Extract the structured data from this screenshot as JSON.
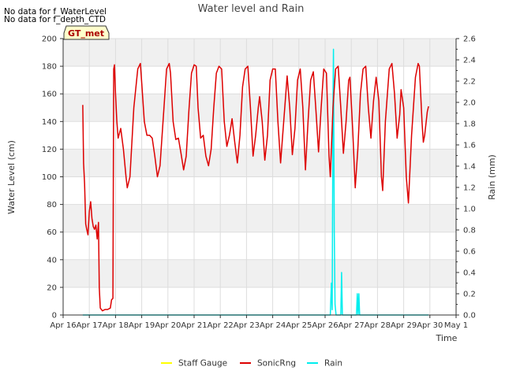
{
  "notes": [
    "No data for f_WaterLevel",
    "No data for f_depth_CTD"
  ],
  "badge": "GT_met",
  "chart_data": {
    "type": "line",
    "title": "Water level and Rain",
    "xlabel": "Time",
    "ylabel_left": "Water Level (cm)",
    "ylabel_right": "Rain (mm)",
    "x_ticks": [
      "Apr 16",
      "Apr 17",
      "Apr 18",
      "Apr 19",
      "Apr 20",
      "Apr 21",
      "Apr 22",
      "Apr 23",
      "Apr 24",
      "Apr 25",
      "Apr 26",
      "Apr 27",
      "Apr 28",
      "Apr 29",
      "Apr 30",
      "May 1"
    ],
    "xlim": [
      0,
      15
    ],
    "ylim_left": [
      0,
      200
    ],
    "yticks_left": [
      0,
      20,
      40,
      60,
      80,
      100,
      120,
      140,
      160,
      180,
      200
    ],
    "ylim_right": [
      0,
      2.6
    ],
    "yticks_right": [
      0.0,
      0.2,
      0.4,
      0.6,
      0.8,
      1.0,
      1.2,
      1.4,
      1.6,
      1.8,
      2.0,
      2.2,
      2.4,
      2.6
    ],
    "grid": true,
    "legend_position": "bottom",
    "series": [
      {
        "name": "Staff Gauge",
        "color": "#ffff00",
        "points": []
      },
      {
        "name": "SonicRng",
        "color": "#dd0000",
        "axis": "left",
        "points": [
          [
            0.75,
            152
          ],
          [
            0.78,
            110
          ],
          [
            0.82,
            95
          ],
          [
            0.86,
            66
          ],
          [
            0.9,
            62
          ],
          [
            0.95,
            58
          ],
          [
            1.0,
            75
          ],
          [
            1.05,
            82
          ],
          [
            1.1,
            70
          ],
          [
            1.15,
            64
          ],
          [
            1.2,
            62
          ],
          [
            1.25,
            65
          ],
          [
            1.3,
            55
          ],
          [
            1.35,
            67
          ],
          [
            1.38,
            20
          ],
          [
            1.42,
            5
          ],
          [
            1.5,
            3
          ],
          [
            1.6,
            4
          ],
          [
            1.7,
            4
          ],
          [
            1.8,
            5
          ],
          [
            1.85,
            11
          ],
          [
            1.9,
            12
          ],
          [
            1.93,
            178
          ],
          [
            1.96,
            181
          ],
          [
            2.0,
            160
          ],
          [
            2.05,
            140
          ],
          [
            2.1,
            128
          ],
          [
            2.2,
            135
          ],
          [
            2.3,
            120
          ],
          [
            2.4,
            100
          ],
          [
            2.45,
            92
          ],
          [
            2.55,
            100
          ],
          [
            2.7,
            150
          ],
          [
            2.85,
            178
          ],
          [
            2.95,
            182
          ],
          [
            3.0,
            168
          ],
          [
            3.1,
            140
          ],
          [
            3.2,
            130
          ],
          [
            3.3,
            130
          ],
          [
            3.4,
            128
          ],
          [
            3.5,
            115
          ],
          [
            3.6,
            100
          ],
          [
            3.7,
            108
          ],
          [
            3.85,
            150
          ],
          [
            3.95,
            178
          ],
          [
            4.05,
            182
          ],
          [
            4.1,
            175
          ],
          [
            4.2,
            140
          ],
          [
            4.3,
            127
          ],
          [
            4.4,
            128
          ],
          [
            4.5,
            117
          ],
          [
            4.6,
            105
          ],
          [
            4.7,
            115
          ],
          [
            4.8,
            148
          ],
          [
            4.9,
            175
          ],
          [
            5.0,
            181
          ],
          [
            5.08,
            180
          ],
          [
            5.15,
            150
          ],
          [
            5.25,
            128
          ],
          [
            5.35,
            130
          ],
          [
            5.45,
            115
          ],
          [
            5.55,
            108
          ],
          [
            5.65,
            120
          ],
          [
            5.75,
            150
          ],
          [
            5.85,
            175
          ],
          [
            5.95,
            180
          ],
          [
            6.05,
            178
          ],
          [
            6.15,
            140
          ],
          [
            6.25,
            122
          ],
          [
            6.35,
            130
          ],
          [
            6.45,
            142
          ],
          [
            6.55,
            125
          ],
          [
            6.65,
            110
          ],
          [
            6.75,
            130
          ],
          [
            6.85,
            165
          ],
          [
            6.95,
            178
          ],
          [
            7.05,
            180
          ],
          [
            7.15,
            150
          ],
          [
            7.25,
            115
          ],
          [
            7.35,
            130
          ],
          [
            7.45,
            150
          ],
          [
            7.5,
            158
          ],
          [
            7.6,
            140
          ],
          [
            7.7,
            112
          ],
          [
            7.8,
            130
          ],
          [
            7.9,
            170
          ],
          [
            8.0,
            178
          ],
          [
            8.1,
            178
          ],
          [
            8.2,
            140
          ],
          [
            8.3,
            110
          ],
          [
            8.4,
            135
          ],
          [
            8.5,
            160
          ],
          [
            8.55,
            173
          ],
          [
            8.65,
            150
          ],
          [
            8.75,
            116
          ],
          [
            8.85,
            135
          ],
          [
            8.95,
            170
          ],
          [
            9.05,
            178
          ],
          [
            9.15,
            150
          ],
          [
            9.25,
            105
          ],
          [
            9.35,
            140
          ],
          [
            9.45,
            170
          ],
          [
            9.55,
            176
          ],
          [
            9.65,
            148
          ],
          [
            9.75,
            118
          ],
          [
            9.85,
            150
          ],
          [
            9.95,
            178
          ],
          [
            10.05,
            175
          ],
          [
            10.15,
            115
          ],
          [
            10.2,
            100
          ],
          [
            10.3,
            150
          ],
          [
            10.4,
            178
          ],
          [
            10.5,
            180
          ],
          [
            10.6,
            150
          ],
          [
            10.7,
            117
          ],
          [
            10.8,
            140
          ],
          [
            10.9,
            170
          ],
          [
            10.95,
            172
          ],
          [
            11.05,
            135
          ],
          [
            11.15,
            92
          ],
          [
            11.25,
            120
          ],
          [
            11.35,
            160
          ],
          [
            11.45,
            178
          ],
          [
            11.55,
            180
          ],
          [
            11.65,
            150
          ],
          [
            11.75,
            128
          ],
          [
            11.85,
            155
          ],
          [
            11.95,
            172
          ],
          [
            12.05,
            155
          ],
          [
            12.15,
            100
          ],
          [
            12.2,
            90
          ],
          [
            12.3,
            140
          ],
          [
            12.45,
            178
          ],
          [
            12.55,
            182
          ],
          [
            12.65,
            160
          ],
          [
            12.75,
            128
          ],
          [
            12.85,
            145
          ],
          [
            12.9,
            163
          ],
          [
            13.0,
            150
          ],
          [
            13.1,
            100
          ],
          [
            13.18,
            81
          ],
          [
            13.3,
            130
          ],
          [
            13.45,
            172
          ],
          [
            13.55,
            182
          ],
          [
            13.6,
            180
          ],
          [
            13.7,
            140
          ],
          [
            13.75,
            125
          ],
          [
            13.8,
            130
          ],
          [
            13.9,
            147
          ],
          [
            13.95,
            151
          ]
        ]
      },
      {
        "name": "Rain",
        "color": "#00eeee",
        "axis": "right",
        "points": [
          [
            0.75,
            0
          ],
          [
            10.2,
            0
          ],
          [
            10.24,
            0.3
          ],
          [
            10.27,
            0.05
          ],
          [
            10.3,
            2.0
          ],
          [
            10.32,
            2.5
          ],
          [
            10.35,
            0.8
          ],
          [
            10.38,
            0.1
          ],
          [
            10.42,
            0
          ],
          [
            10.6,
            0
          ],
          [
            10.63,
            0.4
          ],
          [
            10.66,
            0
          ],
          [
            11.2,
            0
          ],
          [
            11.23,
            0.2
          ],
          [
            11.26,
            0
          ],
          [
            11.29,
            0.2
          ],
          [
            11.32,
            0
          ],
          [
            13.95,
            0
          ]
        ]
      }
    ]
  }
}
